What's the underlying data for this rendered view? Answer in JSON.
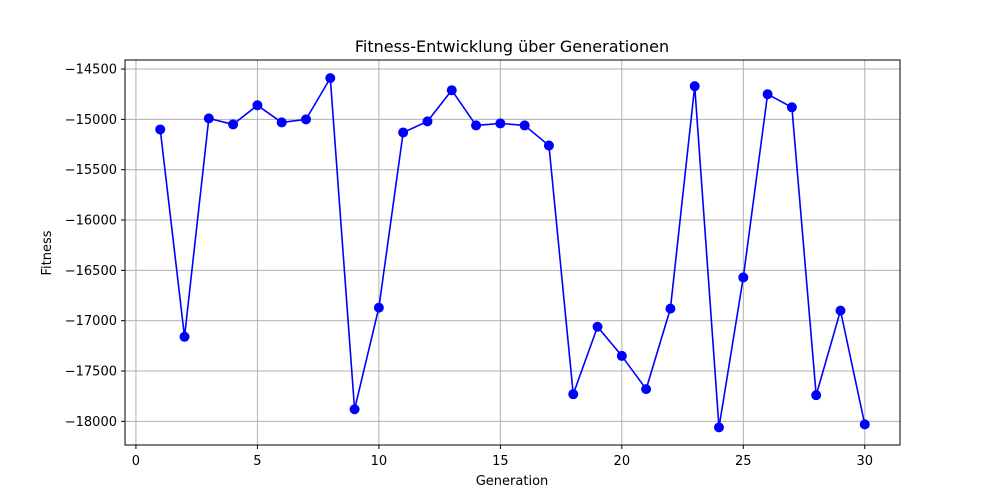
{
  "chart_data": {
    "type": "line",
    "title": "Fitness-Entwicklung über Generationen",
    "xlabel": "Generation",
    "ylabel": "Fitness",
    "xlim": [
      -0.45,
      31.45
    ],
    "ylim": [
      -18235,
      -14410
    ],
    "xticks": [
      0,
      5,
      10,
      15,
      20,
      25,
      30
    ],
    "xtick_labels": [
      "0",
      "5",
      "10",
      "15",
      "20",
      "25",
      "30"
    ],
    "yticks": [
      -18000,
      -17500,
      -17000,
      -16500,
      -16000,
      -15500,
      -15000,
      -14500
    ],
    "ytick_labels": [
      "−18000",
      "−17500",
      "−17000",
      "−16500",
      "−16000",
      "−15500",
      "−15000",
      "−14500"
    ],
    "grid": true,
    "series": [
      {
        "color": "#0000ff",
        "marker": "circle",
        "x": [
          1,
          2,
          3,
          4,
          5,
          6,
          7,
          8,
          9,
          10,
          11,
          12,
          13,
          14,
          15,
          16,
          17,
          18,
          19,
          20,
          21,
          22,
          23,
          24,
          25,
          26,
          27,
          28,
          29,
          30
        ],
        "values": [
          -15100,
          -17160,
          -14990,
          -15050,
          -14860,
          -15030,
          -15000,
          -14590,
          -17880,
          -16870,
          -15130,
          -15020,
          -14710,
          -15060,
          -15040,
          -15060,
          -15260,
          -17730,
          -17060,
          -17350,
          -17680,
          -16880,
          -14670,
          -18060,
          -16570,
          -14750,
          -14880,
          -17740,
          -16900,
          -18030
        ]
      }
    ]
  }
}
